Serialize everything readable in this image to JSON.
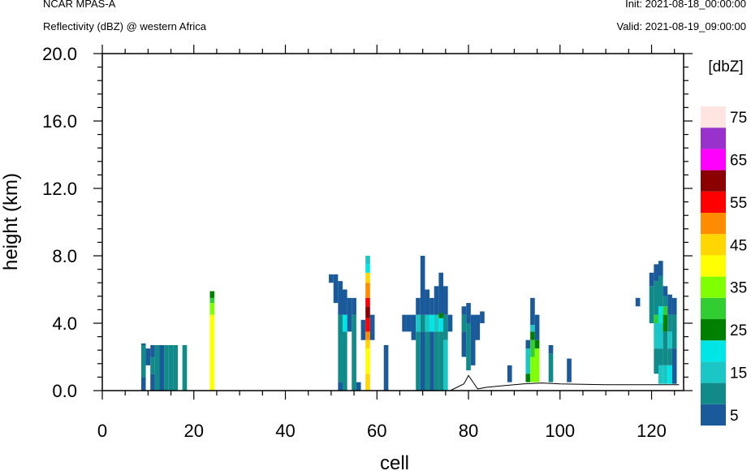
{
  "header": {
    "model": "NCAR MPAS-A",
    "field": "Reflectivity (dBZ) @ western Africa",
    "init": "Init: 2021-08-18_00:00:00",
    "valid": "Valid: 2021-08-19_09:00:00"
  },
  "chart_data": {
    "type": "heatmap",
    "xlabel": "cell",
    "ylabel": "height (km)",
    "xlim": [
      0,
      127
    ],
    "ylim": [
      0,
      20
    ],
    "x_ticks": [
      "0",
      "20",
      "40",
      "60",
      "80",
      "100",
      "120"
    ],
    "y_ticks": [
      "0.0",
      "4.0",
      "8.0",
      "12.0",
      "16.0",
      "20.0"
    ],
    "colorbar": {
      "title": "[dbZ]",
      "levels": [
        5,
        10,
        15,
        20,
        25,
        30,
        35,
        40,
        45,
        50,
        55,
        60,
        65,
        70,
        75
      ],
      "labels": [
        "5",
        "15",
        "25",
        "35",
        "45",
        "55",
        "65",
        "75"
      ],
      "colors": [
        "#1a5a9a",
        "#118a8a",
        "#1ac6c6",
        "#00e5e5",
        "#008000",
        "#32cd32",
        "#7fff00",
        "#ffff00",
        "#ffd700",
        "#ff8c00",
        "#ff0000",
        "#8b0000",
        "#ff00ff",
        "#9932cc",
        "#ffe4e1"
      ]
    },
    "terrain_km": [
      [
        0,
        0
      ],
      [
        76,
        0
      ],
      [
        79,
        0.4
      ],
      [
        80,
        0.9
      ],
      [
        81,
        0.5
      ],
      [
        82,
        0.1
      ],
      [
        84,
        0.2
      ],
      [
        88,
        0.3
      ],
      [
        92,
        0.4
      ],
      [
        96,
        0.45
      ],
      [
        100,
        0.4
      ],
      [
        110,
        0.35
      ],
      [
        120,
        0.35
      ],
      [
        126,
        0.35
      ]
    ],
    "columns": [
      {
        "cell": 9,
        "segments": [
          [
            0,
            0.8,
            5
          ],
          [
            0.8,
            2.7,
            10
          ],
          [
            2.7,
            2.8,
            5
          ]
        ]
      },
      {
        "cell": 10,
        "segments": [
          [
            1.5,
            2.5,
            5
          ]
        ]
      },
      {
        "cell": 11,
        "segments": [
          [
            0,
            1,
            5
          ],
          [
            1,
            2,
            10
          ],
          [
            2,
            2.7,
            5
          ]
        ]
      },
      {
        "cell": 12,
        "segments": [
          [
            0,
            2.7,
            10
          ]
        ]
      },
      {
        "cell": 13,
        "segments": [
          [
            0,
            2.7,
            5
          ]
        ]
      },
      {
        "cell": 14,
        "segments": [
          [
            0,
            2.7,
            10
          ]
        ]
      },
      {
        "cell": 15,
        "segments": [
          [
            0,
            2.7,
            10
          ]
        ]
      },
      {
        "cell": 16,
        "segments": [
          [
            0,
            2.7,
            10
          ]
        ]
      },
      {
        "cell": 18,
        "segments": [
          [
            0,
            2.7,
            10
          ]
        ]
      },
      {
        "cell": 24,
        "segments": [
          [
            0,
            4.5,
            40
          ],
          [
            4.5,
            5.2,
            35
          ],
          [
            5.2,
            5.5,
            30
          ],
          [
            5.5,
            5.9,
            25
          ]
        ]
      },
      {
        "cell": 50,
        "segments": [
          [
            6.4,
            6.9,
            5
          ]
        ]
      },
      {
        "cell": 51,
        "segments": [
          [
            5.2,
            6.9,
            5
          ]
        ]
      },
      {
        "cell": 52,
        "segments": [
          [
            0,
            0.5,
            5
          ],
          [
            0.5,
            4.5,
            10
          ],
          [
            4.5,
            6.5,
            5
          ]
        ]
      },
      {
        "cell": 53,
        "segments": [
          [
            0,
            3.5,
            10
          ],
          [
            3.5,
            4.5,
            20
          ],
          [
            4.5,
            6,
            5
          ]
        ]
      },
      {
        "cell": 54,
        "segments": [
          [
            3.5,
            5.5,
            5
          ]
        ]
      },
      {
        "cell": 55,
        "segments": [
          [
            0,
            4.5,
            10
          ],
          [
            4.5,
            5.5,
            5
          ]
        ]
      },
      {
        "cell": 56,
        "segments": [
          [
            0,
            0.5,
            5
          ]
        ]
      },
      {
        "cell": 57,
        "segments": [
          [
            3,
            4.2,
            5
          ]
        ]
      },
      {
        "cell": 58,
        "segments": [
          [
            0,
            1,
            45
          ],
          [
            1,
            2.5,
            40
          ],
          [
            2.5,
            3,
            45
          ],
          [
            3,
            3.5,
            50
          ],
          [
            3.5,
            4.3,
            55
          ],
          [
            4.3,
            5,
            60
          ],
          [
            5,
            5.5,
            55
          ],
          [
            5.5,
            6.4,
            50
          ],
          [
            6.4,
            7,
            45
          ],
          [
            7,
            7.5,
            20
          ],
          [
            7.5,
            8,
            15
          ]
        ]
      },
      {
        "cell": 59,
        "segments": [
          [
            3,
            4.5,
            5
          ]
        ]
      },
      {
        "cell": 62,
        "segments": [
          [
            0,
            2.7,
            5
          ]
        ]
      },
      {
        "cell": 66,
        "segments": [
          [
            3.5,
            4.5,
            5
          ]
        ]
      },
      {
        "cell": 67,
        "segments": [
          [
            3.5,
            4.5,
            5
          ]
        ]
      },
      {
        "cell": 68,
        "segments": [
          [
            3,
            4.5,
            5
          ]
        ]
      },
      {
        "cell": 69,
        "segments": [
          [
            0,
            3.5,
            10
          ],
          [
            3.5,
            4.5,
            15
          ],
          [
            4.5,
            5.5,
            5
          ]
        ]
      },
      {
        "cell": 70,
        "segments": [
          [
            0,
            3.5,
            5
          ],
          [
            3.5,
            4.5,
            10
          ],
          [
            4.5,
            8,
            5
          ]
        ]
      },
      {
        "cell": 71,
        "segments": [
          [
            0,
            3.5,
            10
          ],
          [
            3.5,
            4.5,
            15
          ],
          [
            4.5,
            6,
            5
          ]
        ]
      },
      {
        "cell": 72,
        "segments": [
          [
            0,
            3.5,
            5
          ],
          [
            3.5,
            4.5,
            20
          ],
          [
            4.5,
            5.5,
            5
          ]
        ]
      },
      {
        "cell": 73,
        "segments": [
          [
            0,
            3.5,
            10
          ],
          [
            3.5,
            4.5,
            15
          ],
          [
            4.5,
            6.2,
            5
          ]
        ]
      },
      {
        "cell": 74,
        "segments": [
          [
            0,
            3.5,
            10
          ],
          [
            3.5,
            4.3,
            20
          ],
          [
            4.3,
            4.6,
            25
          ],
          [
            4.6,
            7,
            5
          ]
        ]
      },
      {
        "cell": 75,
        "segments": [
          [
            0,
            3,
            15
          ],
          [
            3,
            4.5,
            10
          ],
          [
            4.5,
            6.2,
            5
          ]
        ]
      },
      {
        "cell": 76,
        "segments": [
          [
            3.5,
            4.5,
            5
          ]
        ]
      },
      {
        "cell": 79,
        "segments": [
          [
            2,
            3.5,
            5
          ],
          [
            3.5,
            4.5,
            10
          ],
          [
            4.5,
            5,
            5
          ]
        ]
      },
      {
        "cell": 80,
        "segments": [
          [
            1.2,
            4,
            10
          ],
          [
            4,
            5.2,
            5
          ]
        ]
      },
      {
        "cell": 81,
        "segments": [
          [
            1.5,
            4.5,
            5
          ]
        ]
      },
      {
        "cell": 82,
        "segments": [
          [
            3,
            4.5,
            5
          ]
        ]
      },
      {
        "cell": 83,
        "segments": [
          [
            4,
            4.7,
            5
          ]
        ]
      },
      {
        "cell": 89,
        "segments": [
          [
            0.5,
            1.5,
            5
          ]
        ]
      },
      {
        "cell": 93,
        "segments": [
          [
            0.5,
            1,
            25
          ],
          [
            1,
            2.5,
            15
          ],
          [
            2.5,
            3,
            5
          ]
        ]
      },
      {
        "cell": 94,
        "segments": [
          [
            0.5,
            2,
            35
          ],
          [
            2,
            3,
            30
          ],
          [
            3,
            3.5,
            25
          ],
          [
            3.5,
            3.9,
            15
          ],
          [
            3.9,
            5.5,
            5
          ]
        ]
      },
      {
        "cell": 95,
        "segments": [
          [
            0.5,
            2.5,
            35
          ],
          [
            2.5,
            3,
            25
          ],
          [
            3,
            4.5,
            5
          ]
        ]
      },
      {
        "cell": 98,
        "segments": [
          [
            0.5,
            2.2,
            10
          ],
          [
            2.2,
            2.7,
            5
          ]
        ]
      },
      {
        "cell": 102,
        "segments": [
          [
            0.5,
            1.9,
            5
          ]
        ]
      },
      {
        "cell": 117,
        "segments": [
          [
            5,
            5.5,
            5
          ]
        ]
      },
      {
        "cell": 120,
        "segments": [
          [
            4,
            6.2,
            10
          ],
          [
            6.2,
            7,
            5
          ]
        ]
      },
      {
        "cell": 121,
        "segments": [
          [
            1,
            2.5,
            10
          ],
          [
            2.5,
            4,
            15
          ],
          [
            4,
            4.5,
            30
          ],
          [
            4.5,
            6.5,
            10
          ],
          [
            6.5,
            7.5,
            5
          ]
        ]
      },
      {
        "cell": 122,
        "segments": [
          [
            0.4,
            1.5,
            15
          ],
          [
            1.5,
            2.5,
            10
          ],
          [
            2.5,
            4,
            15
          ],
          [
            4,
            5,
            20
          ],
          [
            5,
            6.8,
            10
          ],
          [
            6.8,
            7.7,
            5
          ]
        ]
      },
      {
        "cell": 123,
        "segments": [
          [
            0.4,
            1.5,
            15
          ],
          [
            1.5,
            3.5,
            10
          ],
          [
            3.5,
            4.5,
            25
          ],
          [
            4.5,
            5,
            30
          ],
          [
            5,
            5.6,
            10
          ],
          [
            5.6,
            6.2,
            5
          ]
        ]
      },
      {
        "cell": 124,
        "segments": [
          [
            0.4,
            1.5,
            20
          ],
          [
            1.5,
            2.5,
            10
          ],
          [
            2.5,
            3.5,
            15
          ],
          [
            3.5,
            4.5,
            10
          ],
          [
            4.5,
            5.7,
            5
          ]
        ]
      },
      {
        "cell": 125,
        "segments": [
          [
            0.4,
            2.5,
            5
          ],
          [
            2.5,
            4.5,
            10
          ],
          [
            4.5,
            5.5,
            5
          ]
        ]
      }
    ]
  }
}
